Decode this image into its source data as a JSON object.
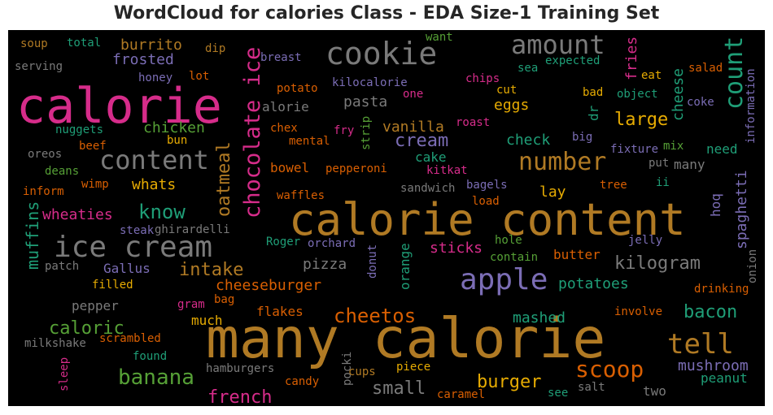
{
  "title": "WordCloud for calories Class - EDA Size-1 Training Set",
  "palette": {
    "pink": "#d62c8a",
    "gold": "#b07a24",
    "gray": "#7a7a7a",
    "purple": "#7b6db5",
    "green": "#56a036",
    "teal": "#1f9e77",
    "orange": "#d95f02",
    "yellow": "#e6ab02",
    "background": "#000000"
  },
  "words": [
    {
      "text": "calorie content",
      "color": "gold"
    },
    {
      "text": "many calorie",
      "color": "gold"
    },
    {
      "text": "calorie",
      "color": "pink"
    },
    {
      "text": "ice cream",
      "color": "gray"
    },
    {
      "text": "cookie",
      "color": "gray"
    },
    {
      "text": "amount",
      "color": "gray"
    },
    {
      "text": "content",
      "color": "gray"
    },
    {
      "text": "chocolate ice",
      "color": "pink"
    },
    {
      "text": "count",
      "color": "teal"
    },
    {
      "text": "apple",
      "color": "purple"
    },
    {
      "text": "number",
      "color": "gold"
    },
    {
      "text": "tell",
      "color": "gold"
    },
    {
      "text": "banana",
      "color": "green"
    },
    {
      "text": "scoop",
      "color": "orange"
    },
    {
      "text": "oatmeal",
      "color": "gold"
    },
    {
      "text": "muffins",
      "color": "teal"
    },
    {
      "text": "know",
      "color": "teal"
    },
    {
      "text": "cheetos",
      "color": "orange"
    },
    {
      "text": "kilogram",
      "color": "gray"
    },
    {
      "text": "intake",
      "color": "gold"
    },
    {
      "text": "large",
      "color": "yellow"
    },
    {
      "text": "cream",
      "color": "purple"
    },
    {
      "text": "burger",
      "color": "yellow"
    },
    {
      "text": "bacon",
      "color": "teal"
    },
    {
      "text": "french",
      "color": "pink"
    },
    {
      "text": "caloric",
      "color": "green"
    },
    {
      "text": "small",
      "color": "gray"
    },
    {
      "text": "pizza",
      "color": "gray"
    },
    {
      "text": "cheeseburger",
      "color": "orange"
    },
    {
      "text": "mushroom",
      "color": "purple"
    },
    {
      "text": "sticks",
      "color": "pink"
    },
    {
      "text": "wheaties",
      "color": "pink"
    },
    {
      "text": "spaghetti",
      "color": "purple"
    },
    {
      "text": "potatoes",
      "color": "teal"
    },
    {
      "text": "mashed",
      "color": "teal"
    },
    {
      "text": "burrito",
      "color": "gold"
    },
    {
      "text": "frosted",
      "color": "purple"
    },
    {
      "text": "chicken",
      "color": "green"
    },
    {
      "text": "vanilla",
      "color": "gold"
    },
    {
      "text": "pasta",
      "color": "gray"
    },
    {
      "text": "eggs",
      "color": "yellow"
    },
    {
      "text": "check",
      "color": "teal"
    },
    {
      "text": "cheese",
      "color": "teal"
    },
    {
      "text": "fries",
      "color": "pink"
    },
    {
      "text": "whats",
      "color": "yellow"
    },
    {
      "text": "bowel",
      "color": "orange"
    },
    {
      "text": "cake",
      "color": "teal"
    },
    {
      "text": "lay",
      "color": "yellow"
    },
    {
      "text": "butter",
      "color": "orange"
    },
    {
      "text": "flakes",
      "color": "orange"
    },
    {
      "text": "orange",
      "color": "teal"
    },
    {
      "text": "peanut",
      "color": "teal"
    },
    {
      "text": "need",
      "color": "teal"
    },
    {
      "text": "pepper",
      "color": "gray"
    },
    {
      "text": "much",
      "color": "yellow"
    },
    {
      "text": "Gallus",
      "color": "purple"
    },
    {
      "text": "two",
      "color": "gray"
    },
    {
      "text": "alorie",
      "color": "gray"
    },
    {
      "text": "many",
      "color": "gray"
    },
    {
      "text": "hoq",
      "color": "purple"
    },
    {
      "text": "dr",
      "color": "teal"
    },
    {
      "text": "information",
      "color": "purple"
    },
    {
      "text": "onion",
      "color": "gray"
    },
    {
      "text": "drinking",
      "color": "orange"
    },
    {
      "text": "ghirardelli",
      "color": "gray"
    },
    {
      "text": "steak",
      "color": "purple"
    },
    {
      "text": "Roger",
      "color": "teal"
    },
    {
      "text": "orchard",
      "color": "purple"
    },
    {
      "text": "donut",
      "color": "purple"
    },
    {
      "text": "contain",
      "color": "green"
    },
    {
      "text": "hole",
      "color": "green"
    },
    {
      "text": "jelly",
      "color": "purple"
    },
    {
      "text": "pepperoni",
      "color": "orange"
    },
    {
      "text": "kitkat",
      "color": "pink"
    },
    {
      "text": "sandwich",
      "color": "gray"
    },
    {
      "text": "bagels",
      "color": "purple"
    },
    {
      "text": "load",
      "color": "orange"
    },
    {
      "text": "waffles",
      "color": "orange"
    },
    {
      "text": "tree",
      "color": "orange"
    },
    {
      "text": "ii",
      "color": "teal"
    },
    {
      "text": "put",
      "color": "gray"
    },
    {
      "text": "fixture",
      "color": "purple"
    },
    {
      "text": "mix",
      "color": "green"
    },
    {
      "text": "big",
      "color": "purple"
    },
    {
      "text": "roast",
      "color": "pink"
    },
    {
      "text": "mental",
      "color": "orange"
    },
    {
      "text": "strip",
      "color": "green"
    },
    {
      "text": "fry",
      "color": "pink"
    },
    {
      "text": "chex",
      "color": "orange"
    },
    {
      "text": "potato",
      "color": "orange"
    },
    {
      "text": "kilocalorie",
      "color": "purple"
    },
    {
      "text": "one",
      "color": "pink"
    },
    {
      "text": "chips",
      "color": "pink"
    },
    {
      "text": "cut",
      "color": "yellow"
    },
    {
      "text": "bad",
      "color": "yellow"
    },
    {
      "text": "object",
      "color": "teal"
    },
    {
      "text": "coke",
      "color": "purple"
    },
    {
      "text": "eat",
      "color": "yellow"
    },
    {
      "text": "salad",
      "color": "orange"
    },
    {
      "text": "sea",
      "color": "teal"
    },
    {
      "text": "expected",
      "color": "teal"
    },
    {
      "text": "want",
      "color": "green"
    },
    {
      "text": "breast",
      "color": "purple"
    },
    {
      "text": "lot",
      "color": "orange"
    },
    {
      "text": "honey",
      "color": "purple"
    },
    {
      "text": "dip",
      "color": "gold"
    },
    {
      "text": "soup",
      "color": "gold"
    },
    {
      "text": "total",
      "color": "teal"
    },
    {
      "text": "serving",
      "color": "gray"
    },
    {
      "text": "nuggets",
      "color": "teal"
    },
    {
      "text": "bun",
      "color": "yellow"
    },
    {
      "text": "beef",
      "color": "orange"
    },
    {
      "text": "oreos",
      "color": "gray"
    },
    {
      "text": "deans",
      "color": "green"
    },
    {
      "text": "wimp",
      "color": "orange"
    },
    {
      "text": "inform",
      "color": "orange"
    },
    {
      "text": "patch",
      "color": "gray"
    },
    {
      "text": "filled",
      "color": "yellow"
    },
    {
      "text": "gram",
      "color": "pink"
    },
    {
      "text": "bag",
      "color": "orange"
    },
    {
      "text": "scrambled",
      "color": "orange"
    },
    {
      "text": "milkshake",
      "color": "gray"
    },
    {
      "text": "found",
      "color": "teal"
    },
    {
      "text": "sleep",
      "color": "pink"
    },
    {
      "text": "hamburgers",
      "color": "gray"
    },
    {
      "text": "pocki",
      "color": "gray"
    },
    {
      "text": "candy",
      "color": "orange"
    },
    {
      "text": "cups",
      "color": "gold"
    },
    {
      "text": "piece",
      "color": "yellow"
    },
    {
      "text": "caramel",
      "color": "orange"
    },
    {
      "text": "see",
      "color": "teal"
    },
    {
      "text": "salt",
      "color": "gray"
    },
    {
      "text": "involve",
      "color": "orange"
    }
  ]
}
